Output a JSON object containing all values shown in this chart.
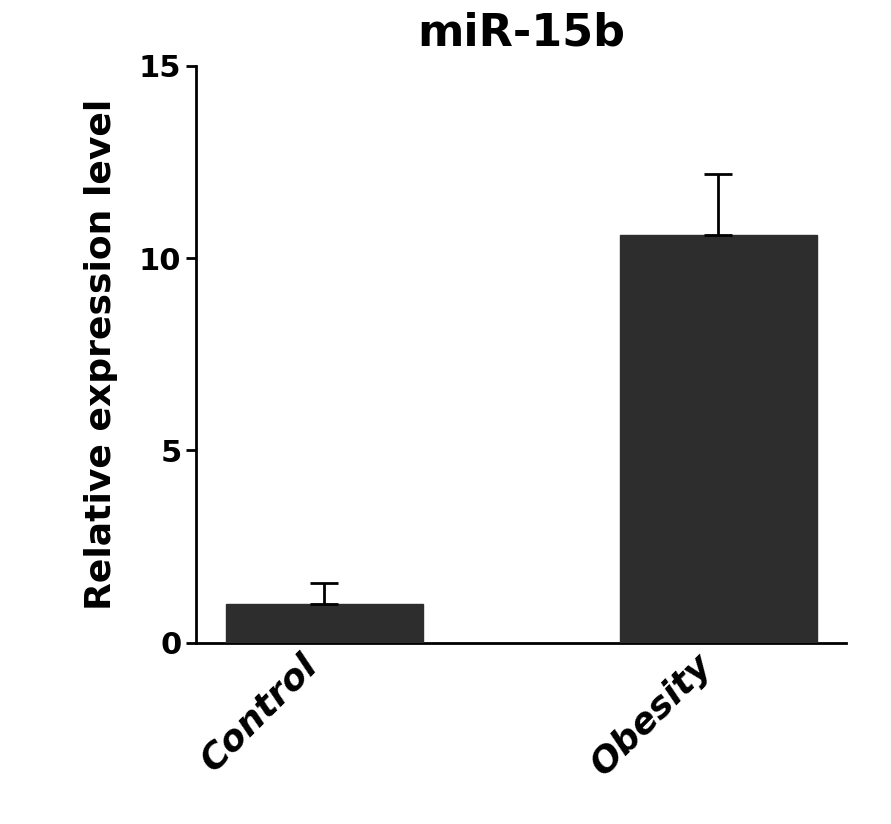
{
  "title": "miR-15b",
  "ylabel": "Relative expression level",
  "categories": [
    "Control",
    "Obesity"
  ],
  "values": [
    1.0,
    10.6
  ],
  "errors_upper": [
    0.55,
    1.6
  ],
  "errors_lower": [
    0.0,
    0.0
  ],
  "bar_color": "#2d2d2d",
  "ylim": [
    0,
    15
  ],
  "yticks": [
    0,
    5,
    10,
    15
  ],
  "title_fontsize": 32,
  "ylabel_fontsize": 26,
  "ytick_fontsize": 22,
  "xlabel_fontsize": 26,
  "bar_width": 0.5,
  "background_color": "#ffffff",
  "error_capsize": 10,
  "error_linewidth": 2.0,
  "rotation": 45
}
